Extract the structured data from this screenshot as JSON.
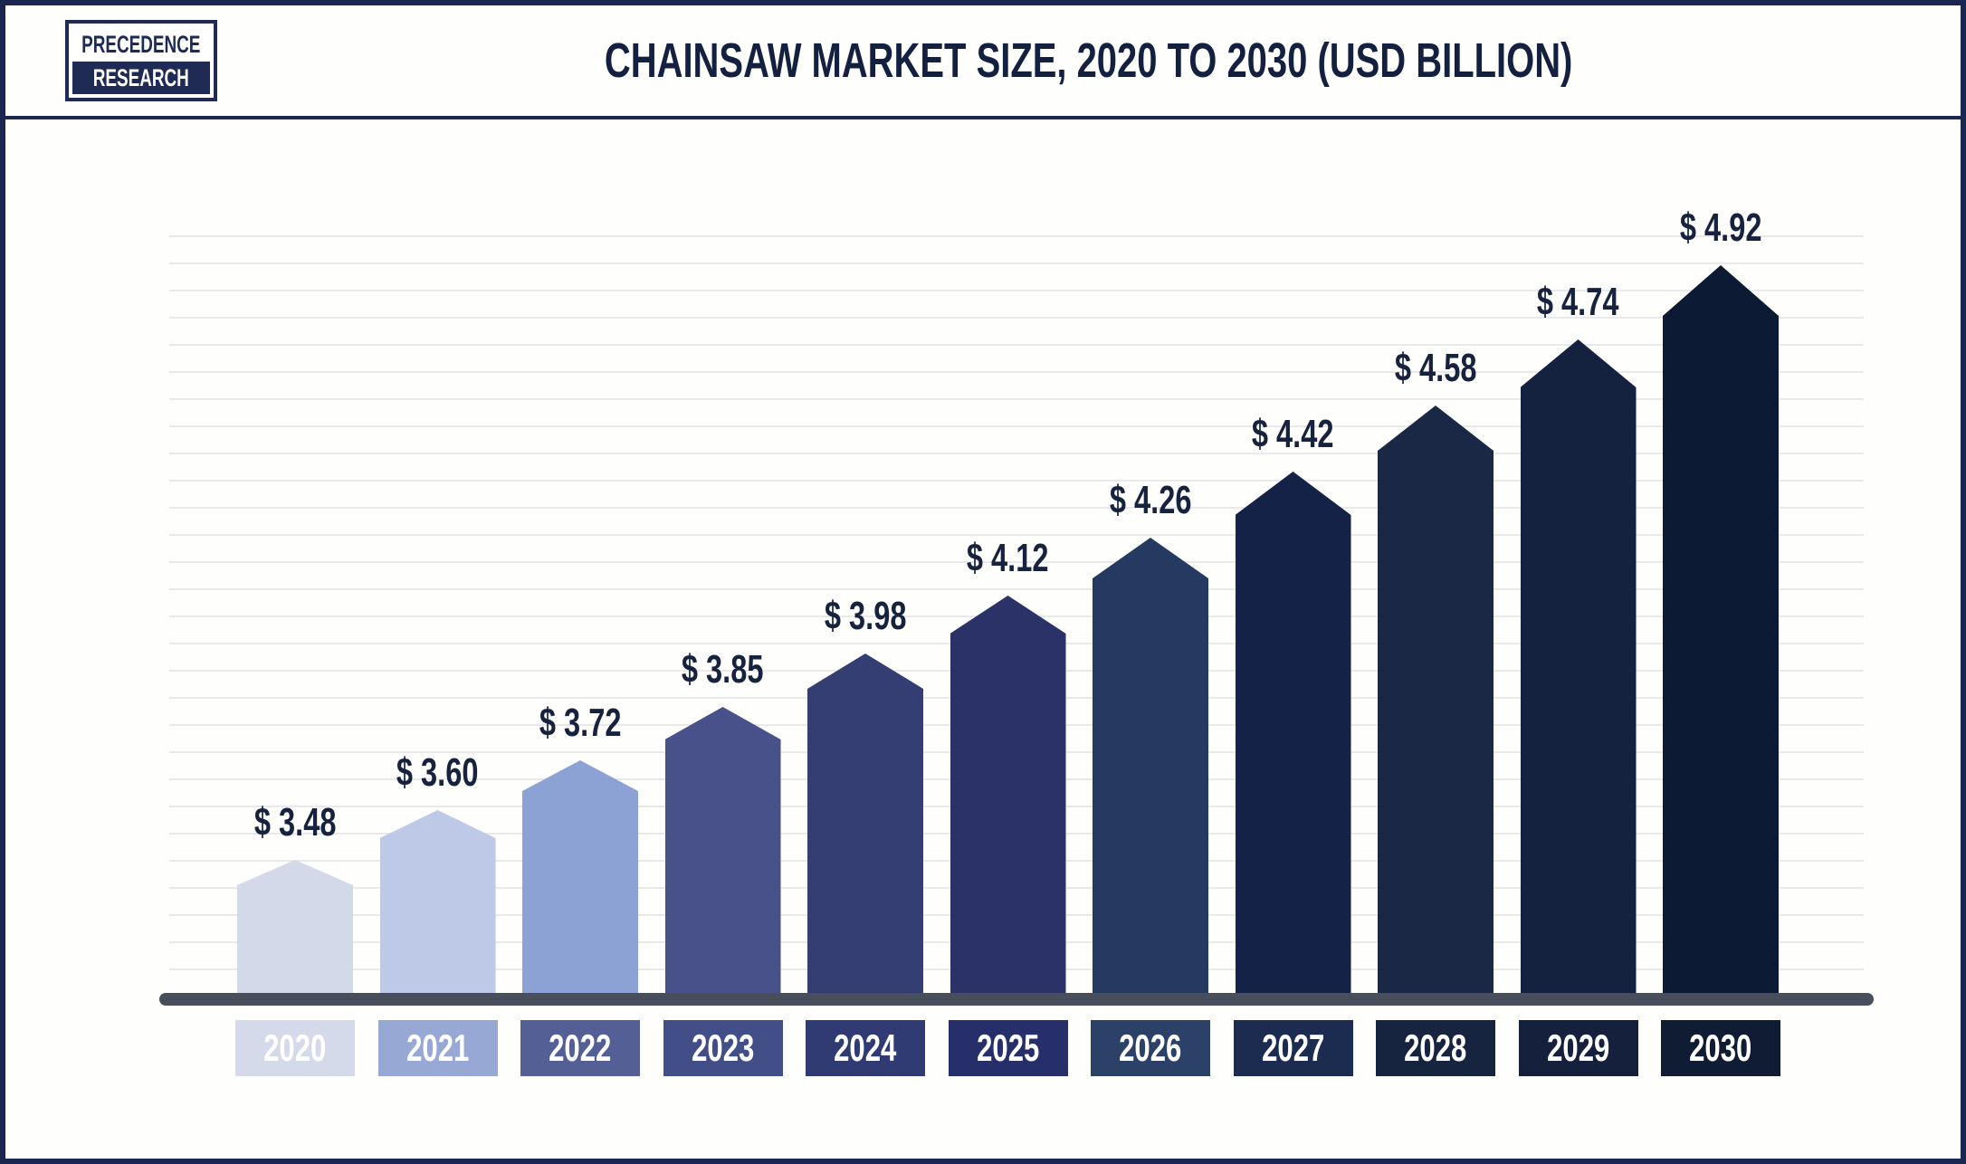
{
  "brand": {
    "line1": "PRECEDENCE",
    "line2": "RESEARCH"
  },
  "header": {
    "title": "CHAINSAW MARKET SIZE, 2020 TO 2030 (USD BILLION)"
  },
  "chart_data": {
    "type": "bar",
    "title": "CHAINSAW MARKET SIZE, 2020 TO 2030 (USD BILLION)",
    "xlabel": "",
    "ylabel": "",
    "unit": "USD Billion",
    "legend": "none",
    "grid": "horizontal-light-gray",
    "categories": [
      "2020",
      "2021",
      "2022",
      "2023",
      "2024",
      "2025",
      "2026",
      "2027",
      "2028",
      "2029",
      "2030"
    ],
    "values": [
      3.48,
      3.6,
      3.72,
      3.85,
      3.98,
      4.12,
      4.26,
      4.42,
      4.58,
      4.74,
      4.92
    ],
    "value_labels": [
      "$ 3.48",
      "$ 3.60",
      "$ 3.72",
      "$ 3.85",
      "$ 3.98",
      "$ 4.12",
      "$ 4.26",
      "$ 4.42",
      "$ 4.58",
      "$ 4.74",
      "$ 4.92"
    ],
    "bar_colors": [
      "#D4D9EA",
      "#BDC9E6",
      "#8DA2D4",
      "#485189",
      "#343E73",
      "#2B3268",
      "#253A60",
      "#152247",
      "#1B2845",
      "#15223F",
      "#0D1A33"
    ],
    "label_box_colors": [
      "#D5DAEB",
      "#97A8D4",
      "#545F96",
      "#424E87",
      "#303B74",
      "#272F6A",
      "#2C4167",
      "#1C2B50",
      "#17243F",
      "#14203C",
      "#101C34"
    ],
    "value_label_color": "#16223E",
    "axis_color": "#484E5B",
    "accent_navy": "#1B2750"
  }
}
